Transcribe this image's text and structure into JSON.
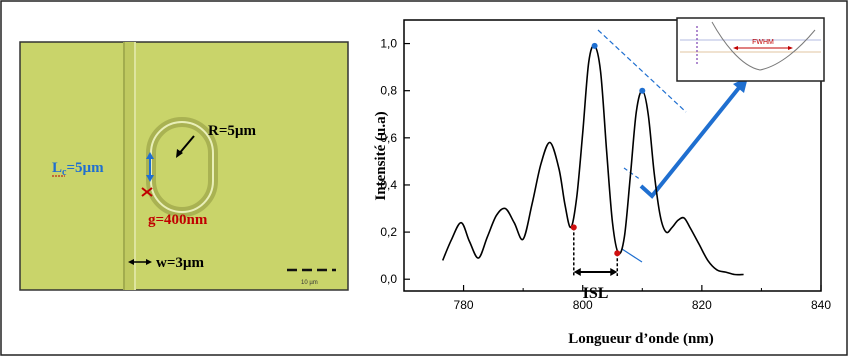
{
  "micrograph": {
    "lc_main": "L",
    "lc_sub": "c",
    "lc_value": "=5µm",
    "radius": "R=5µm",
    "gap": "g=400nm",
    "width": "w=3µm",
    "scale_bar": "10 µm",
    "colors": {
      "background": "#c9d46a",
      "lc": "#1f6fd0",
      "gap": "#c00000"
    }
  },
  "chart_data": {
    "type": "line",
    "xlabel": "Longueur d’onde (nm)",
    "ylabel": "Intensité (u.a)",
    "xlim": [
      770,
      840
    ],
    "ylim": [
      -0.05,
      1.1
    ],
    "x_ticks": [
      "780",
      "800",
      "820",
      "840"
    ],
    "y_ticks": [
      "0,0",
      "0,2",
      "0,4",
      "0,6",
      "0,8",
      "1,0"
    ],
    "series": [
      {
        "x": [
          776.5,
          778,
          779.6,
          781,
          782.5,
          784,
          785.5,
          787,
          788.5,
          790,
          791.5,
          793,
          794.5,
          796,
          797,
          798,
          799,
          800,
          801,
          802,
          803,
          804,
          805,
          806,
          807,
          808,
          809,
          810,
          811,
          812,
          813,
          814,
          815,
          816,
          817,
          818,
          819.5,
          821,
          822.5,
          824,
          825.5,
          827
        ],
        "values": [
          0.08,
          0.17,
          0.24,
          0.16,
          0.09,
          0.18,
          0.27,
          0.3,
          0.24,
          0.17,
          0.32,
          0.49,
          0.58,
          0.47,
          0.32,
          0.22,
          0.35,
          0.62,
          0.92,
          0.99,
          0.88,
          0.55,
          0.24,
          0.11,
          0.18,
          0.44,
          0.71,
          0.8,
          0.7,
          0.45,
          0.27,
          0.2,
          0.22,
          0.25,
          0.26,
          0.22,
          0.15,
          0.08,
          0.04,
          0.03,
          0.02,
          0.02
        ]
      }
    ],
    "annotations": {
      "isl_label": "ISL",
      "fwhm_label": "FWHM",
      "isl_start_x": 798.5,
      "isl_end_x": 805.8,
      "marker_points": [
        {
          "x": 802,
          "y": 0.99
        },
        {
          "x": 810,
          "y": 0.8
        },
        {
          "x": 798.5,
          "y": 0.22
        },
        {
          "x": 805.8,
          "y": 0.11
        }
      ]
    },
    "colors": {
      "curve": "#000000",
      "annotation": "#1f6fd0",
      "marker_red": "#d01010",
      "marker_blue": "#1f6fd0"
    }
  }
}
